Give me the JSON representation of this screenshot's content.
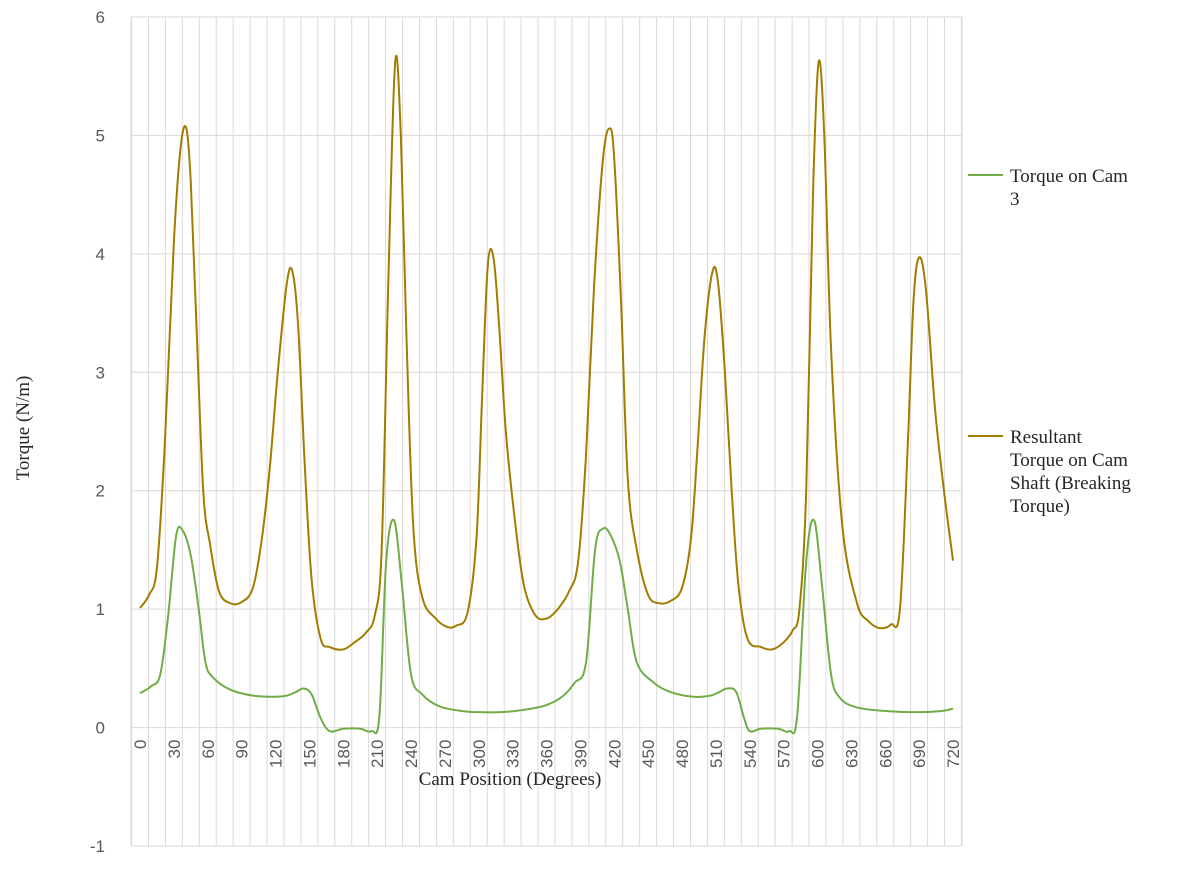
{
  "chart_data": {
    "type": "line",
    "title": "",
    "xlabel": "Cam Position (Degrees)",
    "ylabel": "Torque (N/m)",
    "xlim": [
      0,
      720
    ],
    "ylim": [
      -1,
      6
    ],
    "yticks": [
      -1,
      0,
      1,
      2,
      3,
      4,
      5,
      6
    ],
    "xticks": [
      0,
      30,
      60,
      90,
      120,
      150,
      180,
      210,
      240,
      270,
      300,
      330,
      360,
      390,
      420,
      450,
      480,
      510,
      540,
      570,
      600,
      630,
      660,
      690,
      720
    ],
    "grid": true,
    "legend": "right",
    "series": [
      {
        "name": "Torque on Cam 3",
        "color": "#70ad47",
        "x": [
          0,
          10,
          18,
          25,
          32,
          38,
          45,
          52,
          58,
          65,
          80,
          100,
          120,
          130,
          138,
          145,
          152,
          160,
          168,
          180,
          195,
          205,
          212,
          218,
          225,
          232,
          240,
          250,
          265,
          285,
          300,
          320,
          340,
          360,
          375,
          385,
          395,
          403,
          410,
          417,
          425,
          432,
          440,
          455,
          470,
          490,
          505,
          513,
          520,
          528,
          535,
          540,
          550,
          565,
          575,
          582,
          590,
          597,
          604,
          612,
          620,
          635,
          660,
          690,
          710,
          720
        ],
        "y": [
          0.29,
          0.35,
          0.45,
          0.95,
          1.62,
          1.66,
          1.45,
          1.0,
          0.55,
          0.42,
          0.32,
          0.27,
          0.26,
          0.27,
          0.3,
          0.33,
          0.28,
          0.08,
          -0.03,
          -0.01,
          -0.01,
          -0.03,
          0.1,
          1.4,
          1.75,
          1.2,
          0.45,
          0.28,
          0.18,
          0.14,
          0.13,
          0.13,
          0.15,
          0.19,
          0.27,
          0.38,
          0.55,
          1.5,
          1.68,
          1.62,
          1.4,
          1.0,
          0.55,
          0.38,
          0.3,
          0.26,
          0.27,
          0.3,
          0.33,
          0.3,
          0.08,
          -0.03,
          -0.01,
          -0.01,
          -0.03,
          0.1,
          1.4,
          1.75,
          1.2,
          0.45,
          0.25,
          0.17,
          0.14,
          0.13,
          0.14,
          0.16
        ]
      },
      {
        "name": "Resultant Torque on Cam Shaft (Breaking Torque)",
        "color": "#a27c00",
        "x": [
          0,
          8,
          15,
          22,
          30,
          36,
          41,
          45,
          50,
          56,
          62,
          70,
          80,
          90,
          100,
          108,
          115,
          122,
          130,
          135,
          140,
          146,
          152,
          160,
          168,
          180,
          190,
          200,
          208,
          214,
          220,
          226,
          231,
          236,
          242,
          250,
          262,
          272,
          280,
          290,
          298,
          303,
          308,
          313,
          318,
          324,
          332,
          340,
          350,
          360,
          370,
          380,
          388,
          395,
          402,
          410,
          416,
          420,
          426,
          432,
          440,
          450,
          460,
          470,
          480,
          488,
          494,
          500,
          507,
          512,
          518,
          524,
          530,
          538,
          550,
          560,
          570,
          578,
          584,
          590,
          596,
          601,
          606,
          612,
          622,
          635,
          645,
          655,
          665,
          673,
          680,
          685,
          690,
          696,
          704,
          712,
          720
        ],
        "y": [
          1.01,
          1.12,
          1.35,
          2.4,
          4.1,
          4.9,
          5.06,
          4.6,
          3.4,
          2.0,
          1.55,
          1.15,
          1.05,
          1.06,
          1.18,
          1.6,
          2.2,
          3.0,
          3.75,
          3.85,
          3.4,
          2.2,
          1.25,
          0.75,
          0.68,
          0.66,
          0.72,
          0.8,
          0.95,
          1.5,
          3.8,
          5.62,
          5.0,
          3.3,
          1.7,
          1.1,
          0.92,
          0.85,
          0.86,
          0.97,
          1.6,
          2.8,
          3.9,
          3.97,
          3.4,
          2.5,
          1.75,
          1.2,
          0.95,
          0.92,
          1.0,
          1.15,
          1.4,
          2.3,
          3.7,
          4.8,
          5.06,
          4.8,
          3.6,
          2.1,
          1.5,
          1.12,
          1.05,
          1.07,
          1.18,
          1.6,
          2.4,
          3.3,
          3.85,
          3.75,
          3.0,
          2.0,
          1.2,
          0.75,
          0.68,
          0.66,
          0.72,
          0.82,
          1.0,
          2.0,
          4.5,
          5.62,
          5.0,
          3.2,
          1.7,
          1.05,
          0.9,
          0.84,
          0.87,
          1.0,
          2.4,
          3.6,
          3.97,
          3.7,
          2.7,
          2.0,
          1.41
        ]
      }
    ]
  },
  "legend": {
    "items": [
      {
        "lines": [
          "Torque on Cam",
          "3"
        ],
        "color": "#70ad47"
      },
      {
        "lines": [
          "Resultant",
          "Torque on Cam",
          "Shaft (Breaking",
          "Torque)"
        ],
        "color": "#a27c00"
      }
    ]
  }
}
